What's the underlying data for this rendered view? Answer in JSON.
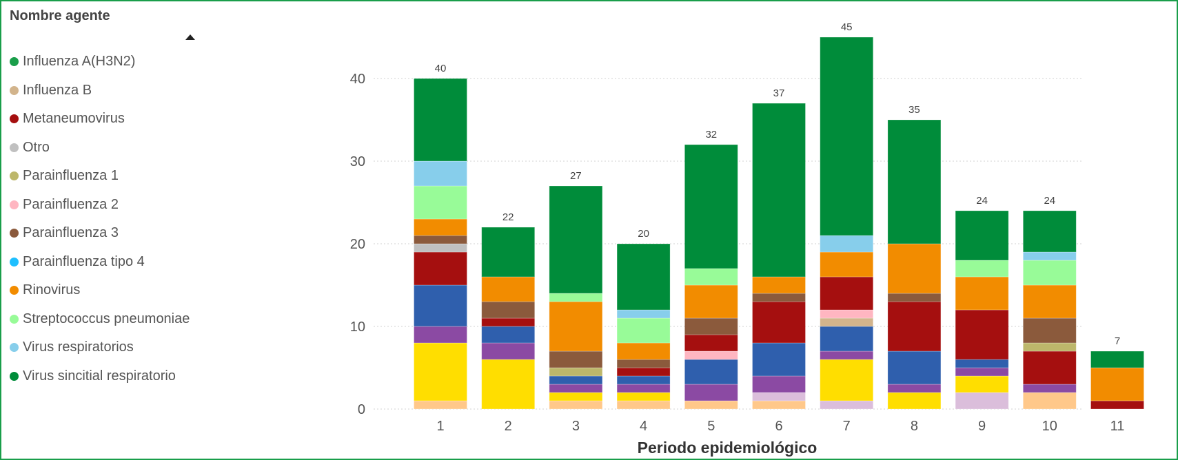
{
  "legend": {
    "title": "Nombre agente",
    "sort_icon": "triangle-up-icon"
  },
  "chart_data": {
    "type": "bar",
    "stacked": true,
    "xlabel": "Periodo epidemiológico",
    "ylabel": "",
    "ylim": [
      0,
      48
    ],
    "yticks": [
      0,
      10,
      20,
      30,
      40
    ],
    "grid": true,
    "legend_position": "left",
    "categories": [
      "1",
      "2",
      "3",
      "4",
      "5",
      "6",
      "7",
      "8",
      "9",
      "10",
      "11"
    ],
    "totals": [
      40,
      22,
      27,
      20,
      32,
      37,
      45,
      35,
      24,
      24,
      7
    ],
    "legend_entries": [
      {
        "name": "Influenza A(H3N2)",
        "color": "#1a9e4a"
      },
      {
        "name": "Influenza B",
        "color": "#d2b48c"
      },
      {
        "name": "Metaneumovirus",
        "color": "#a50f0f"
      },
      {
        "name": "Otro",
        "color": "#c0c0c0"
      },
      {
        "name": "Parainfluenza 1",
        "color": "#bdb76b"
      },
      {
        "name": "Parainfluenza 2",
        "color": "#ffb6c1"
      },
      {
        "name": "Parainfluenza 3",
        "color": "#8b5a3c"
      },
      {
        "name": "Parainfluenza tipo 4",
        "color": "#1ebfff"
      },
      {
        "name": "Rinovirus",
        "color": "#f28c00"
      },
      {
        "name": "Streptococcus pneumoniae",
        "color": "#98fb98"
      },
      {
        "name": "Virus respiratorios",
        "color": "#87ceeb"
      },
      {
        "name": "Virus sincitial respiratorio",
        "color": "#008c3a"
      }
    ],
    "series": [
      {
        "color": "#ffc88a",
        "values": [
          1,
          0,
          1,
          1,
          1,
          1,
          0,
          0,
          0,
          2,
          0
        ]
      },
      {
        "color": "#dbbedb",
        "values": [
          0,
          0,
          0,
          0,
          0,
          1,
          1,
          0,
          2,
          0,
          0
        ]
      },
      {
        "color": "#ffde00",
        "values": [
          7,
          6,
          1,
          1,
          0,
          0,
          5,
          2,
          2,
          0,
          0
        ]
      },
      {
        "color": "#8b4aa3",
        "values": [
          2,
          2,
          1,
          1,
          2,
          2,
          1,
          1,
          1,
          1,
          0
        ]
      },
      {
        "color": "#2f5fad",
        "values": [
          5,
          2,
          1,
          1,
          3,
          4,
          3,
          4,
          1,
          0,
          0
        ]
      },
      {
        "name": "Influenza B",
        "color": "#d2b48c",
        "values": [
          0,
          0,
          0,
          0,
          0,
          0,
          1,
          0,
          0,
          0,
          0
        ]
      },
      {
        "name": "Parainfluenza 2",
        "color": "#ffb6c1",
        "values": [
          0,
          0,
          0,
          0,
          1,
          0,
          1,
          0,
          0,
          0,
          0
        ]
      },
      {
        "name": "Metaneumovirus",
        "color": "#a50f0f",
        "values": [
          4,
          1,
          0,
          1,
          2,
          5,
          4,
          6,
          6,
          4,
          1
        ]
      },
      {
        "name": "Otro",
        "color": "#c0c0c0",
        "values": [
          1,
          0,
          0,
          0,
          0,
          0,
          0,
          0,
          0,
          0,
          0
        ]
      },
      {
        "name": "Parainfluenza 1",
        "color": "#bdb76b",
        "values": [
          0,
          0,
          1,
          0,
          0,
          0,
          0,
          0,
          0,
          1,
          0
        ]
      },
      {
        "name": "Parainfluenza 3",
        "color": "#8b5a3c",
        "values": [
          1,
          2,
          2,
          1,
          2,
          1,
          0,
          1,
          0,
          3,
          0
        ]
      },
      {
        "name": "Rinovirus",
        "color": "#f28c00",
        "values": [
          2,
          3,
          6,
          2,
          4,
          2,
          3,
          6,
          4,
          4,
          4
        ]
      },
      {
        "name": "Streptococcus pneumoniae",
        "color": "#98fb98",
        "values": [
          4,
          0,
          1,
          3,
          2,
          0,
          0,
          0,
          2,
          3,
          0
        ]
      },
      {
        "name": "Virus respiratorios",
        "color": "#87ceeb",
        "values": [
          3,
          0,
          0,
          1,
          0,
          0,
          2,
          0,
          0,
          1,
          0
        ]
      },
      {
        "name": "Virus sincitial respiratorio",
        "color": "#008c3a",
        "values": [
          10,
          6,
          13,
          8,
          15,
          21,
          24,
          15,
          6,
          5,
          2
        ]
      }
    ]
  }
}
